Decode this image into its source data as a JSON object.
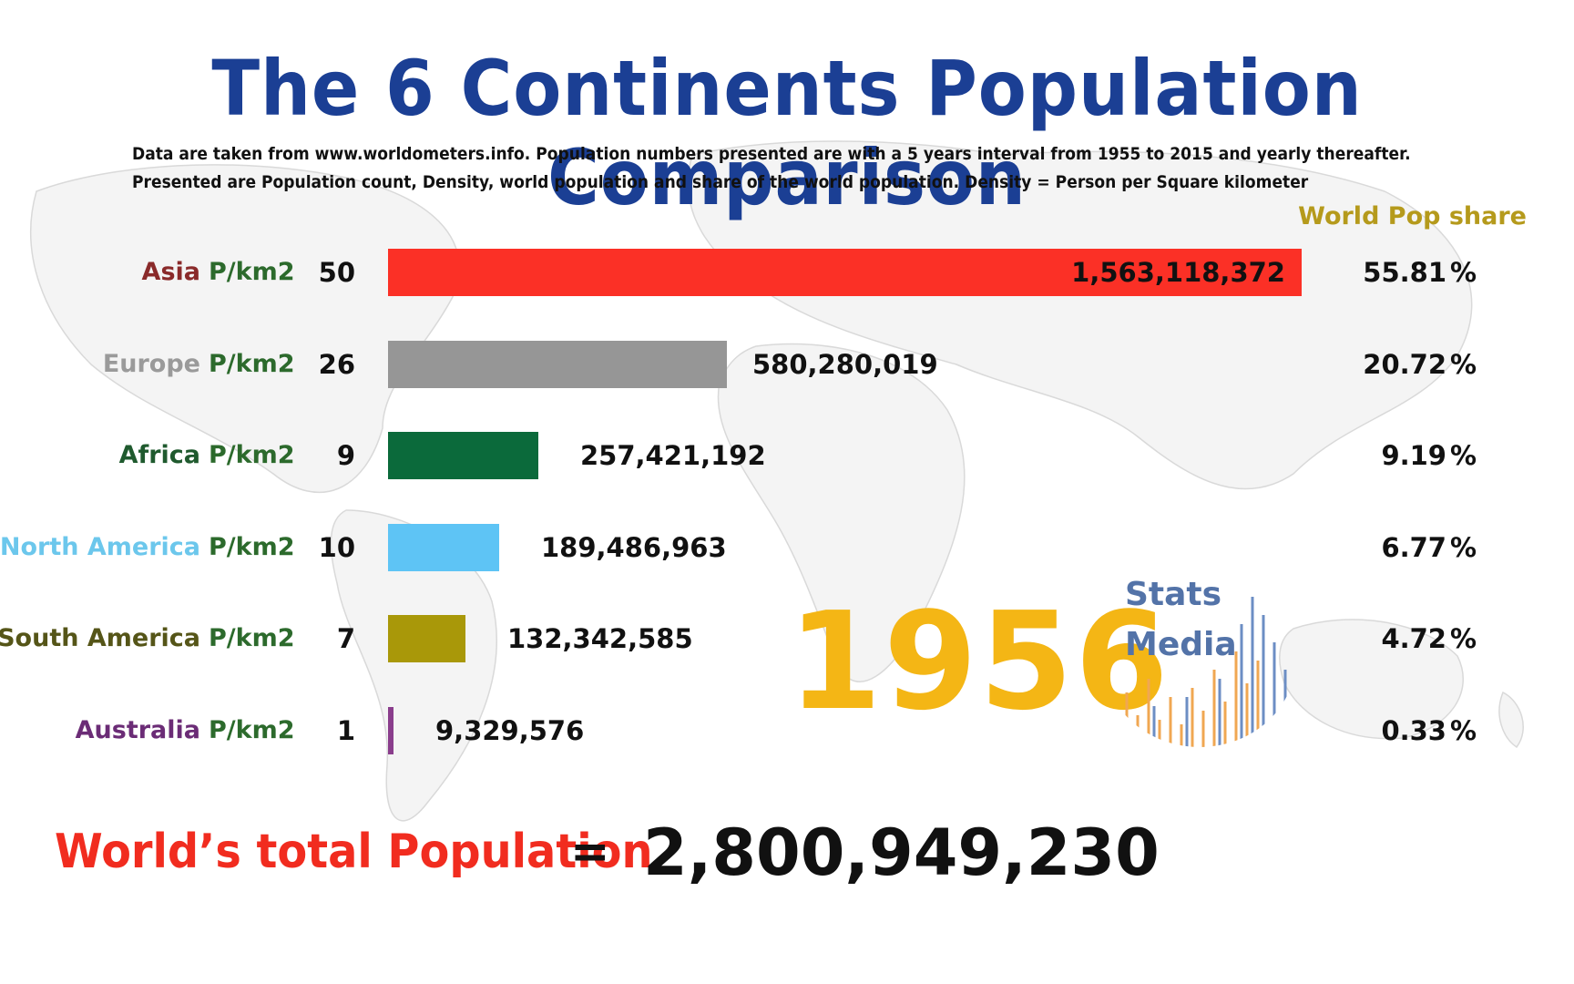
{
  "title": "The 6 Continents Population Comparison",
  "subtitle_lines": [
    "Data are taken from www.worldometers.info. Population numbers presented are with a 5 years interval from 1955 to 2015 and yearly thereafter.",
    "Presented are Population count, Density, world population and share of the world population. Density = Person per Square kilometer"
  ],
  "share_header": "World Pop share",
  "year": "1956",
  "logo": {
    "line1": "Stats",
    "line2": "Media"
  },
  "total": {
    "label": "World’s total Population",
    "equals": "=",
    "value": "2,800,949,230"
  },
  "chart_data": {
    "type": "bar",
    "orientation": "horizontal",
    "unit_label": "P/km2",
    "rows": [
      {
        "name": "Asia",
        "name_color": "#8a2a2a",
        "bar_color": "#fb3026",
        "density": "50",
        "population": 1563118372,
        "population_label": "1,563,118,372",
        "share": "55.81",
        "pct_sign": "%"
      },
      {
        "name": "Europe",
        "name_color": "#9a9a9a",
        "bar_color": "#969696",
        "density": "26",
        "population": 580280019,
        "population_label": "580,280,019",
        "share": "20.72",
        "pct_sign": "%"
      },
      {
        "name": "Africa",
        "name_color": "#1f5a2e",
        "bar_color": "#0b6a3b",
        "density": "9",
        "population": 257421192,
        "population_label": "257,421,192",
        "share": "9.19",
        "pct_sign": "%"
      },
      {
        "name": "North America",
        "name_color": "#6cc7ec",
        "bar_color": "#5ec4f5",
        "density": "10",
        "population": 189486963,
        "population_label": "189,486,963",
        "share": "6.77",
        "pct_sign": "%"
      },
      {
        "name": "South America",
        "name_color": "#555518",
        "bar_color": "#a99809",
        "density": "7",
        "population": 132342585,
        "population_label": "132,342,585",
        "share": "4.72",
        "pct_sign": "%"
      },
      {
        "name": "Australia",
        "name_color": "#6b2c76",
        "bar_color": "#8a3d8c",
        "density": "1",
        "population": 9329576,
        "population_label": "9,329,576",
        "share": "0.33",
        "pct_sign": "%"
      }
    ]
  }
}
